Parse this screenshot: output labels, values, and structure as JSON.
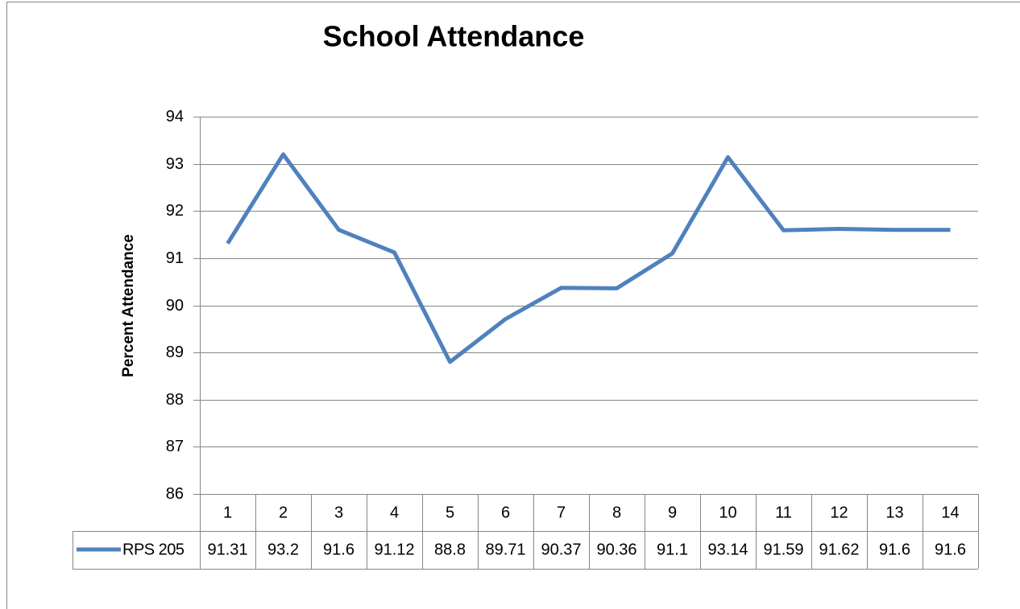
{
  "chart_data": {
    "type": "line",
    "title": "School Attendance",
    "y_label": "Percent Attendance",
    "categories": [
      "1",
      "2",
      "3",
      "4",
      "5",
      "6",
      "7",
      "8",
      "9",
      "10",
      "11",
      "12",
      "13",
      "14"
    ],
    "series": [
      {
        "name": "RPS 205",
        "color": "#4f81bd",
        "values": [
          91.31,
          93.2,
          91.6,
          91.12,
          88.8,
          89.71,
          90.37,
          90.36,
          91.1,
          93.14,
          91.59,
          91.62,
          91.6,
          91.6
        ]
      }
    ],
    "ylim": [
      86,
      94
    ],
    "yticks": [
      86,
      87,
      88,
      89,
      90,
      91,
      92,
      93,
      94
    ],
    "grid": true,
    "data_table": true
  }
}
